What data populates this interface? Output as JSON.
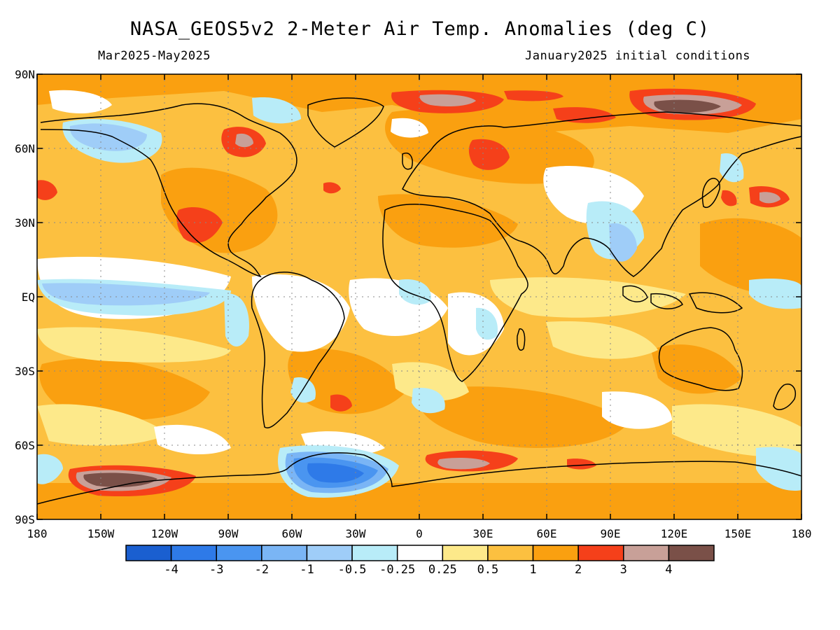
{
  "header": {
    "title": "NASA_GEOS5v2 2-Meter Air Temp. Anomalies (deg C)",
    "period": "Mar2025-May2025",
    "init": "January2025 initial conditions"
  },
  "axes": {
    "y_ticks": [
      {
        "label": "90N",
        "lat": 90
      },
      {
        "label": "60N",
        "lat": 60
      },
      {
        "label": "30N",
        "lat": 30
      },
      {
        "label": "EQ",
        "lat": 0
      },
      {
        "label": "30S",
        "lat": -30
      },
      {
        "label": "60S",
        "lat": -60
      },
      {
        "label": "90S",
        "lat": -90
      }
    ],
    "x_ticks": [
      {
        "label": "180",
        "lon": -180
      },
      {
        "label": "150W",
        "lon": -150
      },
      {
        "label": "120W",
        "lon": -120
      },
      {
        "label": "90W",
        "lon": -90
      },
      {
        "label": "60W",
        "lon": -60
      },
      {
        "label": "30W",
        "lon": -30
      },
      {
        "label": "0",
        "lon": 0
      },
      {
        "label": "30E",
        "lon": 30
      },
      {
        "label": "60E",
        "lon": 60
      },
      {
        "label": "90E",
        "lon": 90
      },
      {
        "label": "120E",
        "lon": 120
      },
      {
        "label": "150E",
        "lon": 150
      },
      {
        "label": "180",
        "lon": 180
      }
    ]
  },
  "colorbar": {
    "colors": [
      "#1a5fd0",
      "#2e7ae8",
      "#4a95f0",
      "#7ab5f5",
      "#9fcdf8",
      "#b8ecf8",
      "#ffffff",
      "#fde98a",
      "#fcc040",
      "#faa010",
      "#f5401a",
      "#c8a098",
      "#7a5048"
    ],
    "labels": [
      "-4",
      "-3",
      "-2",
      "-1",
      "-0.5",
      "-0.25",
      "0.25",
      "0.5",
      "1",
      "2",
      "3",
      "4"
    ]
  },
  "map_style": {
    "background_color": "#fcc040",
    "grid": "dotted"
  }
}
